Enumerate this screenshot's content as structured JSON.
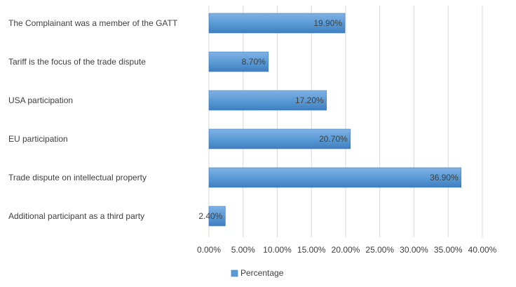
{
  "chart_data": {
    "type": "bar",
    "orientation": "horizontal",
    "categories": [
      "The Complainant was a member of the GATT",
      "Tariff is the focus of the trade dispute",
      "USA participation",
      "EU participation",
      "Trade dispute on intellectual property",
      "Additional participant as a third party"
    ],
    "series": [
      {
        "name": "Percentage",
        "values": [
          19.9,
          8.7,
          17.2,
          20.7,
          36.9,
          2.4
        ],
        "labels": [
          "19.90%",
          "8.70%",
          "17.20%",
          "20.70%",
          "36.90%",
          "2.40%"
        ]
      }
    ],
    "xlim": [
      0,
      40
    ],
    "xticks": [
      "0.00%",
      "5.00%",
      "10.00%",
      "15.00%",
      "20.00%",
      "25.00%",
      "30.00%",
      "35.00%",
      "40.00%"
    ],
    "grid": "vertical",
    "legend": "bottom",
    "colors": {
      "bar": "#5b9bd5",
      "bar_dark": "#3d7cc0",
      "grid": "#d9d9d9",
      "text": "#404040"
    }
  }
}
